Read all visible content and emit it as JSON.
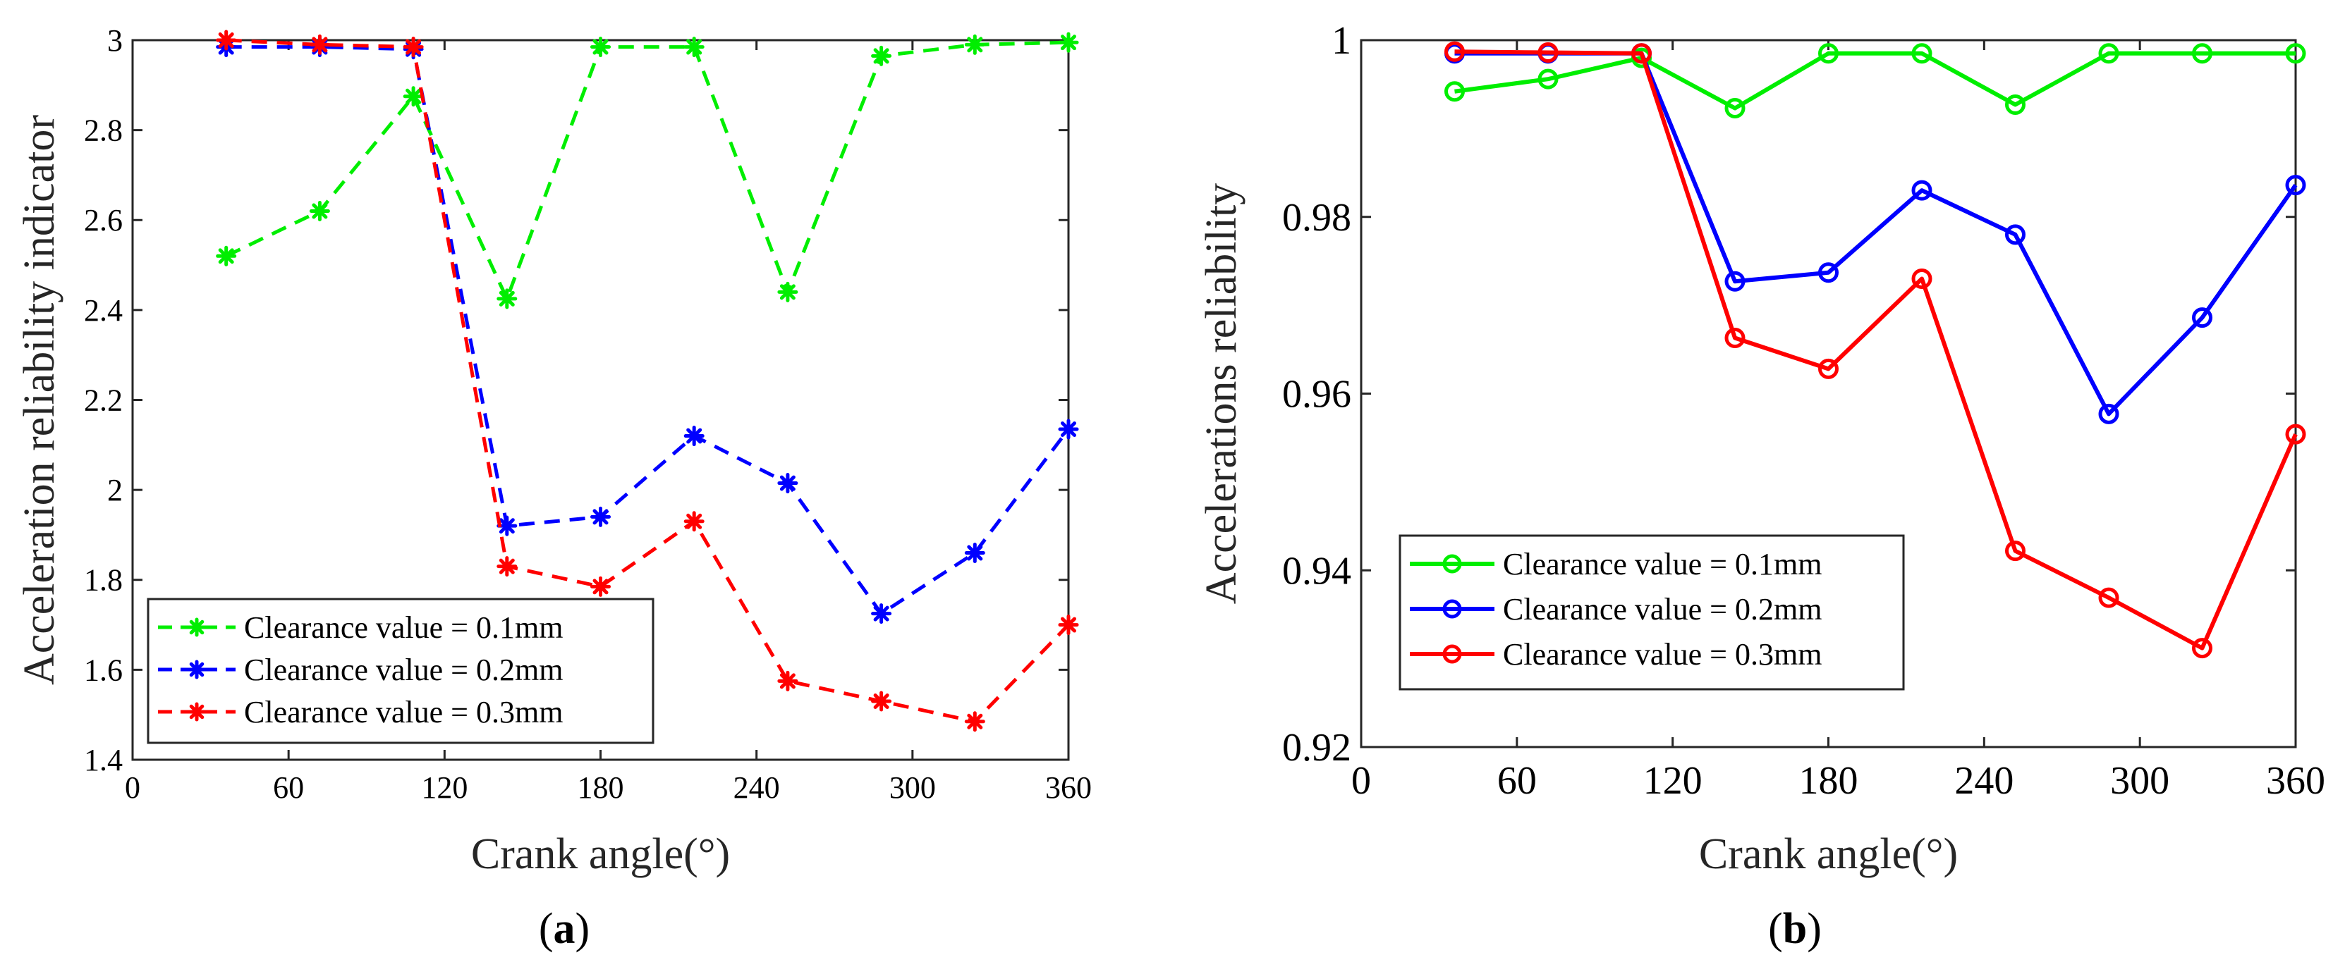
{
  "chart_data": [
    {
      "type": "line",
      "panel_label": "a",
      "xlabel": "Crank angle(°)",
      "ylabel": "Acceleration reliability indicator",
      "xlim": [
        0,
        360
      ],
      "ylim": [
        1.4,
        3.0
      ],
      "xticks": [
        0,
        60,
        120,
        180,
        240,
        300,
        360
      ],
      "yticks": [
        1.4,
        1.6,
        1.8,
        2.0,
        2.2,
        2.4,
        2.6,
        2.8,
        3.0
      ],
      "ytick_labels": [
        "1.4",
        "1.6",
        "1.8",
        "2",
        "2.2",
        "2.4",
        "2.6",
        "2.8",
        "3"
      ],
      "legend_position": "bottom-left",
      "line_style": "dashed",
      "marker": "asterisk",
      "x": [
        36,
        72,
        108,
        144,
        180,
        216,
        252,
        288,
        324,
        360
      ],
      "series": [
        {
          "name": "Clearance value = 0.1mm",
          "color": "#00ee00",
          "values": [
            2.52,
            2.62,
            2.875,
            2.425,
            2.985,
            2.985,
            2.44,
            2.965,
            2.99,
            2.995
          ]
        },
        {
          "name": "Clearance value = 0.2mm",
          "color": "#0000ff",
          "values": [
            2.985,
            2.985,
            2.98,
            1.92,
            1.94,
            2.12,
            2.015,
            1.725,
            1.86,
            2.135
          ]
        },
        {
          "name": "Clearance value = 0.3mm",
          "color": "#ff0000",
          "values": [
            3.0,
            2.99,
            2.985,
            1.83,
            1.785,
            1.93,
            1.575,
            1.53,
            1.485,
            1.7
          ]
        }
      ]
    },
    {
      "type": "line",
      "panel_label": "b",
      "xlabel": "Crank angle(°)",
      "ylabel": "Accelerations reliability",
      "xlim": [
        0,
        360
      ],
      "ylim": [
        0.92,
        1.0
      ],
      "xticks": [
        0,
        60,
        120,
        180,
        240,
        300,
        360
      ],
      "yticks": [
        0.92,
        0.94,
        0.96,
        0.98,
        1.0
      ],
      "ytick_labels": [
        "0.92",
        "0.94",
        "0.96",
        "0.98",
        "1"
      ],
      "legend_position": "bottom-left",
      "line_style": "solid",
      "marker": "circle",
      "x": [
        36,
        72,
        108,
        144,
        180,
        216,
        252,
        288,
        324,
        360
      ],
      "series": [
        {
          "name": "Clearance value = 0.1mm",
          "color": "#00ee00",
          "values": [
            0.9942,
            0.9956,
            0.998,
            0.9923,
            0.9985,
            0.9985,
            0.9927,
            0.9985,
            0.9985,
            0.9985
          ]
        },
        {
          "name": "Clearance value = 0.2mm",
          "color": "#0000ff",
          "values": [
            0.9985,
            0.9985,
            0.9985,
            0.9727,
            0.9737,
            0.983,
            0.978,
            0.9577,
            0.9686,
            0.9836
          ]
        },
        {
          "name": "Clearance value = 0.3mm",
          "color": "#ff0000",
          "values": [
            0.9987,
            0.9986,
            0.9985,
            0.9663,
            0.9628,
            0.973,
            0.9422,
            0.9369,
            0.9312,
            0.9554
          ]
        }
      ]
    }
  ]
}
